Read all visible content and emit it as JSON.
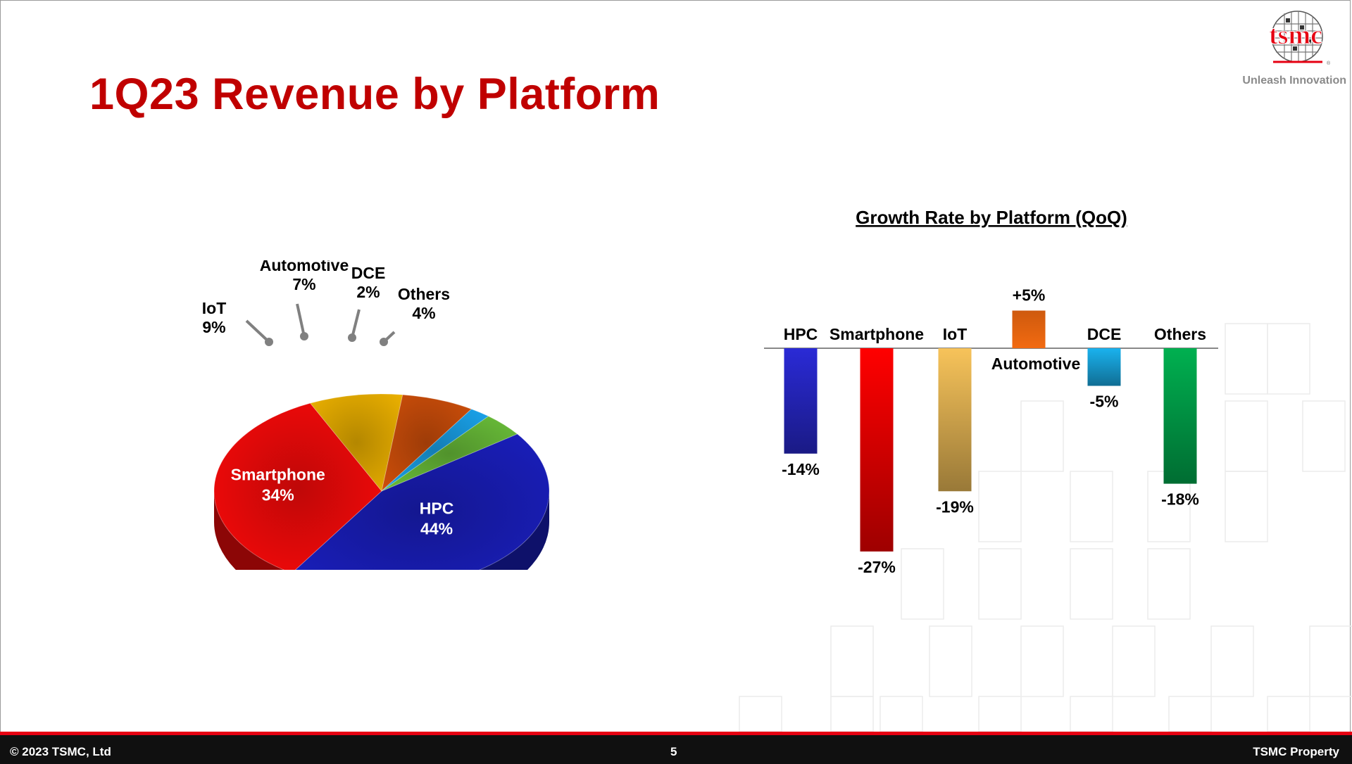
{
  "slide": {
    "title": "1Q23 Revenue by Platform",
    "logo_text": "tsmc",
    "tagline": "Unleash Innovation",
    "brand_color": "#c00000"
  },
  "footer": {
    "copyright": "© 2023 TSMC, Ltd",
    "page_number": "5",
    "property": "TSMC Property"
  },
  "chart_data": [
    {
      "type": "pie",
      "title": "",
      "categories": [
        "HPC",
        "Smartphone",
        "IoT",
        "Automotive",
        "DCE",
        "Others"
      ],
      "values": [
        44,
        34,
        9,
        7,
        2,
        4
      ],
      "value_labels": [
        "44%",
        "34%",
        "9%",
        "7%",
        "2%",
        "4%"
      ],
      "colors": [
        "#1a1fc0",
        "#ff0a0a",
        "#f0b400",
        "#d2500a",
        "#1aa6f0",
        "#6cc23a"
      ]
    },
    {
      "type": "bar",
      "title": "Growth Rate by Platform (QoQ)",
      "categories": [
        "HPC",
        "Smartphone",
        "IoT",
        "Automotive",
        "DCE",
        "Others"
      ],
      "values": [
        -14,
        -27,
        -19,
        5,
        -5,
        -18
      ],
      "value_labels": [
        "-14%",
        "-27%",
        "-19%",
        "+5%",
        "-5%",
        "-18%"
      ],
      "colors": [
        "#2a2ad6",
        "#ff0000",
        "#f7c35a",
        "#f26a10",
        "#1ab2ee",
        "#00b050"
      ],
      "xlabel": "",
      "ylabel": ""
    }
  ]
}
